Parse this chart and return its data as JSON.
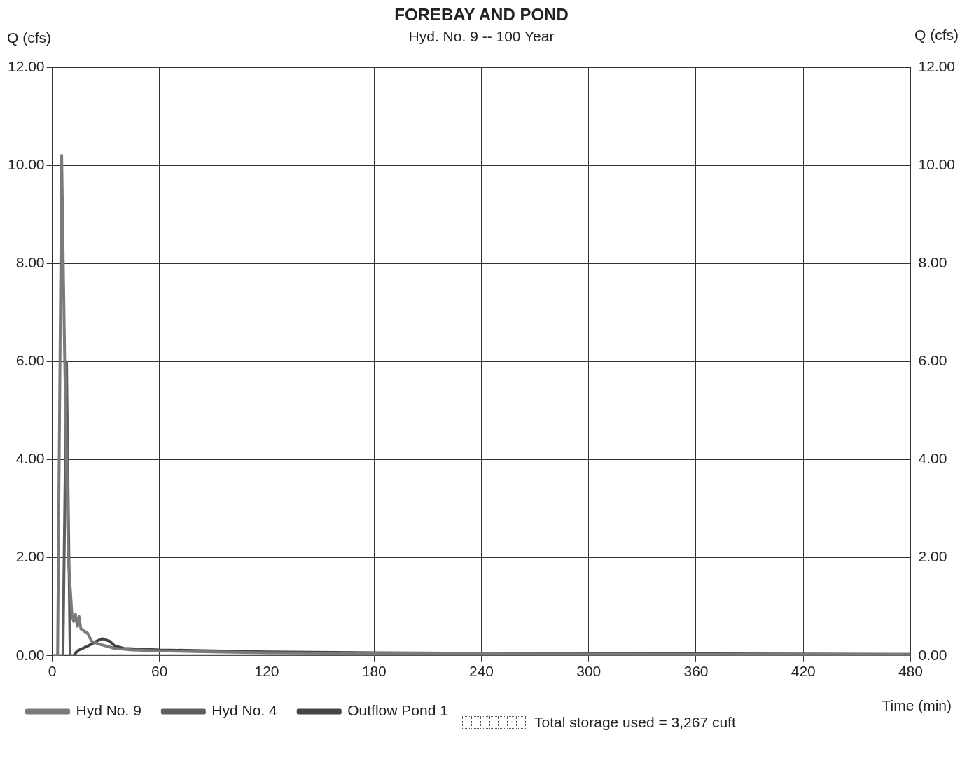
{
  "chart_data": {
    "type": "line",
    "title": "FOREBAY AND POND",
    "subtitle": "Hyd. No. 9 -- 100 Year",
    "xlabel": "Time (min)",
    "ylabel": "Q (cfs)",
    "y2label": "Q (cfs)",
    "annotations": [
      "Total storage used = 3,267 cuft"
    ],
    "series": [
      {
        "name": "Hyd No. 9",
        "color": "#7a7a7a",
        "x": [
          0,
          3,
          5.3,
          7,
          9,
          11,
          12,
          13,
          14,
          15,
          16,
          18,
          20,
          22,
          25,
          30,
          35,
          45,
          60,
          90,
          120,
          180,
          240,
          360,
          480
        ],
        "values": [
          0,
          0,
          10.2,
          6,
          2,
          0.85,
          0.7,
          0.85,
          0.6,
          0.8,
          0.55,
          0.5,
          0.45,
          0.3,
          0.25,
          0.2,
          0.15,
          0.12,
          0.1,
          0.08,
          0.06,
          0.05,
          0.04,
          0.03,
          0.03
        ]
      },
      {
        "name": "Hyd No. 4",
        "color": "#5e5e5e",
        "x": [
          0,
          6,
          8,
          10,
          480
        ],
        "values": [
          0,
          0,
          6,
          0,
          0
        ]
      },
      {
        "name": "Outflow Pond 1",
        "color": "#444444",
        "x": [
          0,
          12,
          14,
          20,
          25,
          28,
          32,
          35,
          40,
          60,
          90,
          120,
          180,
          240,
          360,
          480
        ],
        "values": [
          0,
          0,
          0.1,
          0.2,
          0.3,
          0.35,
          0.3,
          0.2,
          0.15,
          0.12,
          0.1,
          0.08,
          0.06,
          0.05,
          0.04,
          0.03
        ]
      }
    ],
    "xlim": [
      0,
      480
    ],
    "xticks": [
      0,
      60,
      120,
      180,
      240,
      300,
      360,
      420,
      480
    ],
    "ylim": [
      0,
      12
    ],
    "yticks": [
      {
        "value": 0,
        "label": "0.00"
      },
      {
        "value": 2,
        "label": "2.00"
      },
      {
        "value": 4,
        "label": "4.00"
      },
      {
        "value": 6,
        "label": "6.00"
      },
      {
        "value": 8,
        "label": "8.00"
      },
      {
        "value": 10,
        "label": "10.00"
      },
      {
        "value": 12,
        "label": "12.00"
      }
    ],
    "y2lim": [
      0,
      12
    ],
    "y2ticks": [
      {
        "value": 0,
        "label": "0.00"
      },
      {
        "value": 2,
        "label": "2.00"
      },
      {
        "value": 4,
        "label": "4.00"
      },
      {
        "value": 6,
        "label": "6.00"
      },
      {
        "value": 8,
        "label": "8.00"
      },
      {
        "value": 10,
        "label": "10.00"
      },
      {
        "value": 12,
        "label": "12.00"
      }
    ],
    "grid": true,
    "legend": "bottom"
  }
}
